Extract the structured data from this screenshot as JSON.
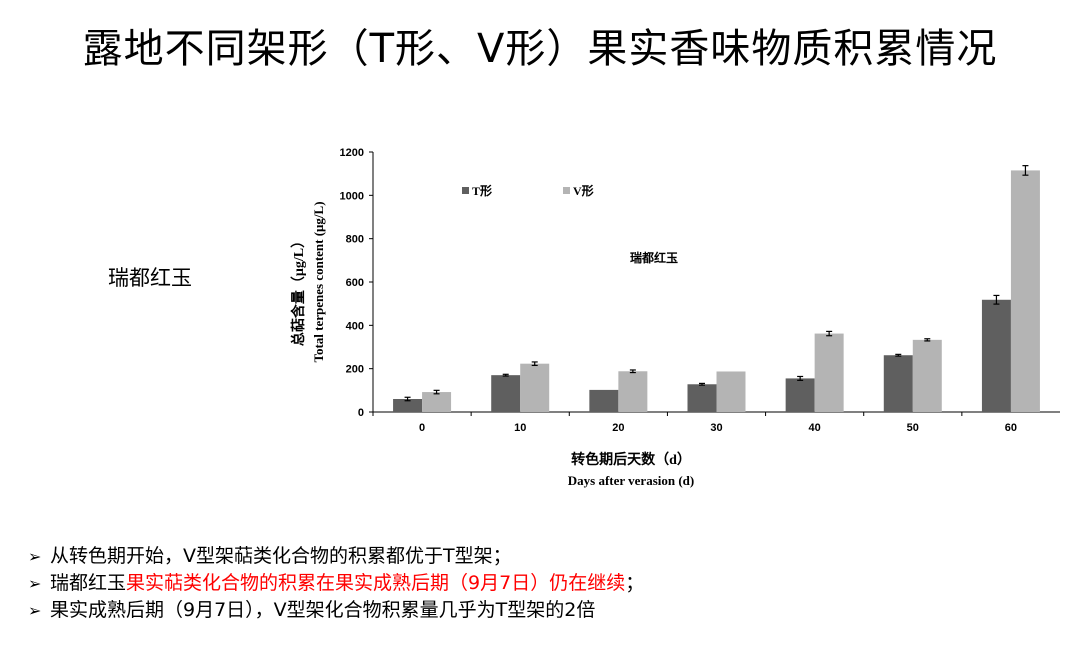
{
  "slide": {
    "title": "露地不同架形（T形、V形）果实香味物质积累情况",
    "side_label": "瑞都红玉"
  },
  "bullets": [
    {
      "marker": "➢",
      "text": "从转色期开始，V型架萜类化合物的积累都优于T型架；"
    },
    {
      "marker": "➢",
      "text_before": "瑞都红玉",
      "text_highlight": "果实萜类化合物的积累在果实成熟后期（9月7日）仍在继续",
      "text_after": "；",
      "highlight_color": "#ff0000"
    },
    {
      "marker": "➢",
      "text": "果实成熟后期（9月7日），V型架化合物积累量几乎为T型架的2倍"
    }
  ],
  "chart_data": {
    "type": "bar",
    "title": "瑞都红玉",
    "categories": [
      "0",
      "10",
      "20",
      "30",
      "40",
      "50",
      "60"
    ],
    "series": [
      {
        "name": "T形",
        "color": "#5f5f5f",
        "values": [
          60,
          170,
          102,
          128,
          155,
          262,
          518
        ],
        "errors": [
          8,
          4,
          0,
          4,
          9,
          4,
          20
        ]
      },
      {
        "name": "V形",
        "color": "#b4b4b4",
        "values": [
          92,
          223,
          188,
          187,
          362,
          333,
          1115
        ],
        "errors": [
          8,
          8,
          6,
          0,
          10,
          5,
          22
        ]
      }
    ],
    "xlabel_cn": "转色期后天数（d）",
    "xlabel_en": "Days after verasion (d)",
    "ylabel_cn": "总萜含量（μg/L）",
    "ylabel_en": "Total terpenes content (μg/L)",
    "ylim": [
      0,
      1200
    ],
    "yticks": [
      "0",
      "200",
      "400",
      "600",
      "800",
      "1000",
      "1200"
    ],
    "legend_position": "top-left",
    "grid": false
  }
}
